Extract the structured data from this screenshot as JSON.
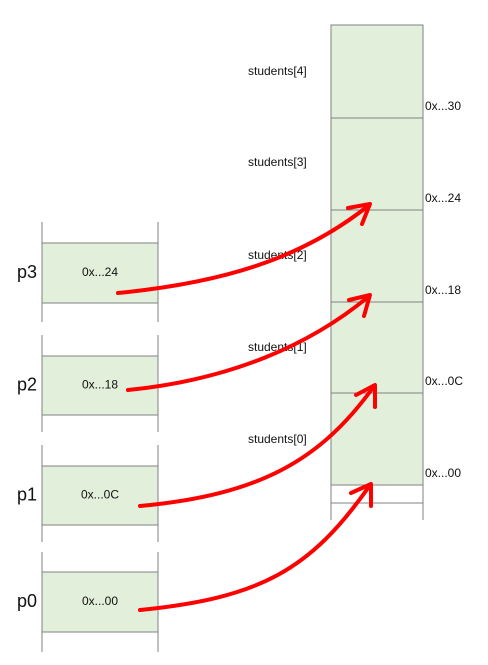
{
  "pointers": [
    {
      "name": "p3",
      "value": "0x...24"
    },
    {
      "name": "p2",
      "value": "0x...18"
    },
    {
      "name": "p1",
      "value": "0x...0C"
    },
    {
      "name": "p0",
      "value": "0x...00"
    }
  ],
  "memory": {
    "elements": [
      "students[4]",
      "students[3]",
      "students[2]",
      "students[1]",
      "students[0]"
    ],
    "addresses": [
      "0x...30",
      "0x...24",
      "0x...18",
      "0x...0C",
      "0x...00"
    ]
  }
}
